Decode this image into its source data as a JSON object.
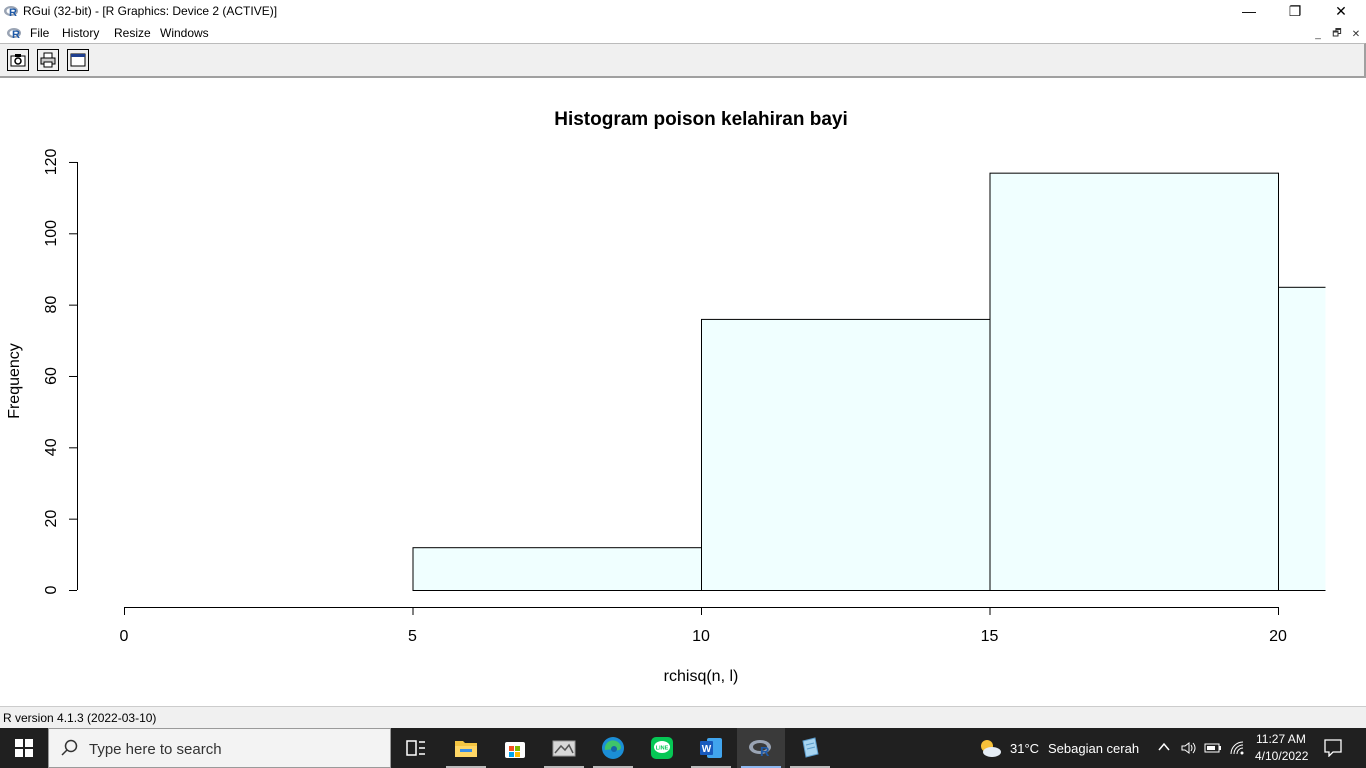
{
  "window": {
    "title": "RGui (32-bit) - [R Graphics: Device 2 (ACTIVE)]",
    "controls": {
      "minimize": "—",
      "restore": "❐",
      "close": "✕"
    }
  },
  "menu": {
    "items": [
      {
        "label": "File"
      },
      {
        "label": "History"
      },
      {
        "label": "Resize"
      },
      {
        "label": "Windows"
      }
    ],
    "mdi_controls": {
      "minimize": "_",
      "restore": "🗗",
      "close": "✕"
    }
  },
  "toolbar": {
    "buttons": [
      {
        "icon": "camera-icon",
        "label": "Copy to clipboard"
      },
      {
        "icon": "printer-icon",
        "label": "Print"
      },
      {
        "icon": "window-icon",
        "label": "Return focus to console"
      }
    ]
  },
  "chart_data": {
    "type": "bar",
    "title": "Histogram poison kelahiran bayi",
    "xlabel": "rchisq(n, l)",
    "ylabel": "Frequency",
    "bins": [
      {
        "from": 5,
        "to": 10,
        "value": 12
      },
      {
        "from": 10,
        "to": 15,
        "value": 76
      },
      {
        "from": 15,
        "to": 20,
        "value": 117
      },
      {
        "from": 20,
        "to": 25,
        "value": 85
      }
    ],
    "xticks": [
      "0",
      "5",
      "10",
      "15",
      "20"
    ],
    "yticks": [
      "0",
      "20",
      "40",
      "60",
      "80",
      "100",
      "120"
    ],
    "xlim": [
      0,
      20.8
    ],
    "ylim": [
      0,
      120
    ],
    "bar_fill": "#f0ffff",
    "bar_stroke": "#000000",
    "grid": false
  },
  "status": {
    "text": "R version 4.1.3 (2022-03-10)"
  },
  "taskbar": {
    "search_placeholder": "Type here to search",
    "apps": [
      {
        "icon": "task-view-icon"
      },
      {
        "icon": "file-explorer-icon"
      },
      {
        "icon": "microsoft-store-icon"
      },
      {
        "icon": "photos-icon"
      },
      {
        "icon": "edge-icon"
      },
      {
        "icon": "line-icon"
      },
      {
        "icon": "word-icon"
      },
      {
        "icon": "r-gui-icon"
      },
      {
        "icon": "notepad-icon"
      }
    ],
    "weather": {
      "temp": "31°C",
      "desc": "Sebagian cerah"
    },
    "time": "11:27 AM",
    "date": "4/10/2022"
  }
}
